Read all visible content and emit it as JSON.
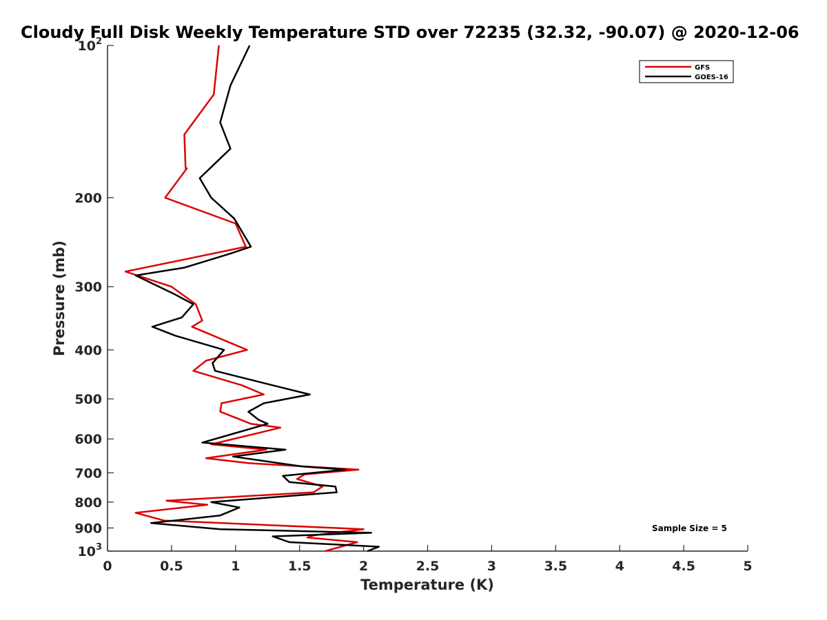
{
  "chart_data": {
    "type": "line",
    "title": "Cloudy Full Disk Weekly Temperature STD over 72235 (32.32, -90.07) @ 2020-12-06",
    "xlabel": "Temperature (K)",
    "ylabel": "Pressure (mb)",
    "xlim": [
      0,
      5
    ],
    "ylim": [
      100,
      1000
    ],
    "y_scale": "log",
    "y_reversed": true,
    "x_ticks": [
      {
        "value": 0,
        "label": "0"
      },
      {
        "value": 0.5,
        "label": "0.5"
      },
      {
        "value": 1,
        "label": "1"
      },
      {
        "value": 1.5,
        "label": "1.5"
      },
      {
        "value": 2,
        "label": "2"
      },
      {
        "value": 2.5,
        "label": "2.5"
      },
      {
        "value": 3,
        "label": "3"
      },
      {
        "value": 3.5,
        "label": "3.5"
      },
      {
        "value": 4,
        "label": "4"
      },
      {
        "value": 4.5,
        "label": "4.5"
      },
      {
        "value": 5,
        "label": "5"
      }
    ],
    "y_ticks": [
      {
        "value": 100,
        "base": "10",
        "exp": "2"
      },
      {
        "value": 200,
        "label": "200"
      },
      {
        "value": 300,
        "label": "300"
      },
      {
        "value": 400,
        "label": "400"
      },
      {
        "value": 500,
        "label": "500"
      },
      {
        "value": 600,
        "label": "600"
      },
      {
        "value": 700,
        "label": "700"
      },
      {
        "value": 800,
        "label": "800"
      },
      {
        "value": 900,
        "label": "900"
      },
      {
        "value": 1000,
        "base": "10",
        "exp": "3"
      }
    ],
    "grid": false,
    "legend": {
      "position": "top-right"
    },
    "annotation": "Sample Size = 5",
    "series": [
      {
        "name": "GFS",
        "color": "#dd0000",
        "points": [
          [
            0.87,
            100
          ],
          [
            0.83,
            125
          ],
          [
            0.6,
            150
          ],
          [
            0.61,
            175
          ],
          [
            0.62,
            175
          ],
          [
            0.45,
            200
          ],
          [
            1.0,
            225
          ],
          [
            1.08,
            250
          ],
          [
            0.6,
            265
          ],
          [
            0.14,
            280
          ],
          [
            0.5,
            300
          ],
          [
            0.69,
            325
          ],
          [
            0.74,
            350
          ],
          [
            0.66,
            360
          ],
          [
            1.09,
            400
          ],
          [
            0.77,
            420
          ],
          [
            0.67,
            440
          ],
          [
            1.05,
            470
          ],
          [
            1.22,
            490
          ],
          [
            0.89,
            510
          ],
          [
            0.88,
            530
          ],
          [
            1.12,
            560
          ],
          [
            1.35,
            570
          ],
          [
            0.81,
            615
          ],
          [
            1.24,
            630
          ],
          [
            0.77,
            655
          ],
          [
            1.1,
            670
          ],
          [
            1.96,
            690
          ],
          [
            1.54,
            705
          ],
          [
            1.48,
            720
          ],
          [
            1.68,
            745
          ],
          [
            1.61,
            765
          ],
          [
            0.46,
            795
          ],
          [
            0.78,
            810
          ],
          [
            0.22,
            840
          ],
          [
            0.44,
            870
          ],
          [
            2.0,
            905
          ],
          [
            1.62,
            930
          ],
          [
            1.56,
            940
          ],
          [
            1.95,
            960
          ],
          [
            1.7,
            1000
          ]
        ]
      },
      {
        "name": "GOES-16",
        "color": "#000000",
        "points": [
          [
            1.11,
            100
          ],
          [
            0.96,
            120
          ],
          [
            0.88,
            142
          ],
          [
            0.96,
            160
          ],
          [
            0.72,
            183
          ],
          [
            0.81,
            200
          ],
          [
            0.99,
            220
          ],
          [
            1.12,
            250
          ],
          [
            0.96,
            258
          ],
          [
            0.6,
            275
          ],
          [
            0.22,
            285
          ],
          [
            0.52,
            310
          ],
          [
            0.67,
            325
          ],
          [
            0.58,
            345
          ],
          [
            0.35,
            360
          ],
          [
            0.53,
            375
          ],
          [
            0.91,
            400
          ],
          [
            0.82,
            425
          ],
          [
            0.84,
            440
          ],
          [
            1.29,
            470
          ],
          [
            1.58,
            490
          ],
          [
            1.22,
            510
          ],
          [
            1.1,
            530
          ],
          [
            1.18,
            550
          ],
          [
            1.25,
            560
          ],
          [
            0.89,
            595
          ],
          [
            0.74,
            610
          ],
          [
            1.39,
            630
          ],
          [
            0.98,
            650
          ],
          [
            1.52,
            680
          ],
          [
            1.86,
            690
          ],
          [
            1.37,
            710
          ],
          [
            1.42,
            730
          ],
          [
            1.78,
            745
          ],
          [
            1.79,
            765
          ],
          [
            0.81,
            800
          ],
          [
            1.03,
            820
          ],
          [
            0.88,
            850
          ],
          [
            0.34,
            880
          ],
          [
            0.88,
            905
          ],
          [
            2.06,
            920
          ],
          [
            1.29,
            935
          ],
          [
            1.42,
            960
          ],
          [
            2.12,
            980
          ],
          [
            2.03,
            1000
          ]
        ]
      }
    ]
  }
}
